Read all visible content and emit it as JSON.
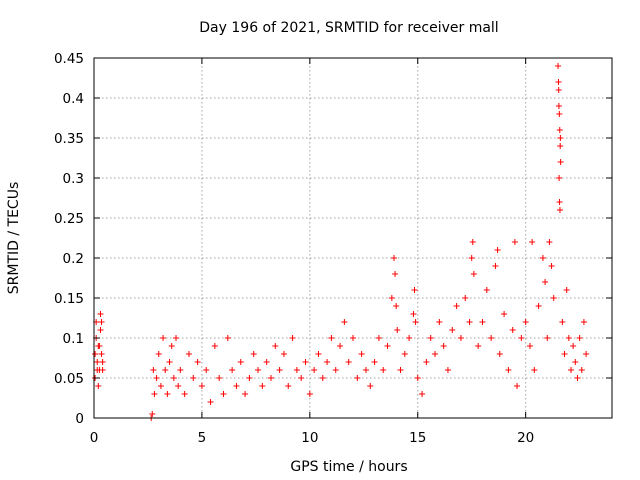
{
  "chart_data": {
    "type": "scatter",
    "title": "Day 196 of 2021, SRMTID for receiver mall",
    "xlabel": "GPS time / hours",
    "ylabel": "SRMTID / TECUs",
    "xlim": [
      0,
      24
    ],
    "ylim": [
      0,
      0.45
    ],
    "xticks": [
      0,
      5,
      10,
      15,
      20
    ],
    "xtick_labels": [
      "0",
      "5",
      "10",
      "15",
      "20"
    ],
    "yticks": [
      0,
      0.05,
      0.1,
      0.15,
      0.2,
      0.25,
      0.3,
      0.35,
      0.4,
      0.45
    ],
    "ytick_labels": [
      "0",
      "0.05",
      "0.1",
      "0.15",
      "0.2",
      "0.25",
      "0.3",
      "0.35",
      "0.4",
      "0.45"
    ],
    "grid": true,
    "marker": "plus",
    "marker_color": "#ff0000",
    "series": [
      {
        "name": "SRMTID",
        "x": [
          0.05,
          0.1,
          0.15,
          0.2,
          0.25,
          0.3,
          0.35,
          0.1,
          0.2,
          0.3,
          0.4,
          0.05,
          0.15,
          0.25,
          0.35,
          0.4,
          2.65,
          2.7,
          2.75,
          2.8,
          2.9,
          3.0,
          3.1,
          3.2,
          3.3,
          3.4,
          3.5,
          3.6,
          3.7,
          3.8,
          3.9,
          4.0,
          4.2,
          4.4,
          4.6,
          4.8,
          5.0,
          5.2,
          5.4,
          5.6,
          5.8,
          6.0,
          6.2,
          6.4,
          6.6,
          6.8,
          7.0,
          7.2,
          7.4,
          7.6,
          7.8,
          8.0,
          8.2,
          8.4,
          8.6,
          8.8,
          9.0,
          9.2,
          9.4,
          9.6,
          9.8,
          10.0,
          10.2,
          10.4,
          10.6,
          10.8,
          11.0,
          11.2,
          11.4,
          11.6,
          11.8,
          12.0,
          12.2,
          12.4,
          12.6,
          12.8,
          13.0,
          13.2,
          13.4,
          13.6,
          13.8,
          13.9,
          13.95,
          14.0,
          14.05,
          14.2,
          14.4,
          14.6,
          14.8,
          14.85,
          14.9,
          15.0,
          15.2,
          15.4,
          15.6,
          15.8,
          16.0,
          16.2,
          16.4,
          16.6,
          16.8,
          17.0,
          17.2,
          17.4,
          17.5,
          17.55,
          17.6,
          17.8,
          18.0,
          18.2,
          18.4,
          18.6,
          18.7,
          18.8,
          19.0,
          19.2,
          19.4,
          19.5,
          19.6,
          19.8,
          20.0,
          20.2,
          20.3,
          20.4,
          20.6,
          20.8,
          20.9,
          21.0,
          21.1,
          21.2,
          21.3,
          21.5,
          21.52,
          21.54,
          21.56,
          21.58,
          21.6,
          21.62,
          21.55,
          21.57,
          21.59,
          21.53,
          21.61,
          21.7,
          21.8,
          21.9,
          22.0,
          22.1,
          22.2,
          22.3,
          22.4,
          22.5,
          22.6,
          22.7,
          22.8
        ],
        "y": [
          0.05,
          0.12,
          0.07,
          0.09,
          0.06,
          0.13,
          0.08,
          0.1,
          0.04,
          0.11,
          0.07,
          0.08,
          0.06,
          0.09,
          0.12,
          0.06,
          0.0,
          0.005,
          0.06,
          0.03,
          0.05,
          0.08,
          0.04,
          0.1,
          0.06,
          0.03,
          0.07,
          0.09,
          0.05,
          0.1,
          0.04,
          0.06,
          0.03,
          0.08,
          0.05,
          0.07,
          0.04,
          0.06,
          0.02,
          0.09,
          0.05,
          0.03,
          0.1,
          0.06,
          0.04,
          0.07,
          0.03,
          0.05,
          0.08,
          0.06,
          0.04,
          0.07,
          0.05,
          0.09,
          0.06,
          0.08,
          0.04,
          0.1,
          0.06,
          0.05,
          0.07,
          0.03,
          0.06,
          0.08,
          0.05,
          0.07,
          0.1,
          0.06,
          0.09,
          0.12,
          0.07,
          0.1,
          0.05,
          0.08,
          0.06,
          0.04,
          0.07,
          0.1,
          0.06,
          0.09,
          0.15,
          0.2,
          0.18,
          0.14,
          0.11,
          0.06,
          0.08,
          0.1,
          0.13,
          0.16,
          0.12,
          0.05,
          0.03,
          0.07,
          0.1,
          0.08,
          0.12,
          0.09,
          0.06,
          0.11,
          0.14,
          0.1,
          0.15,
          0.12,
          0.2,
          0.22,
          0.18,
          0.09,
          0.12,
          0.16,
          0.1,
          0.19,
          0.21,
          0.08,
          0.13,
          0.06,
          0.11,
          0.22,
          0.04,
          0.1,
          0.12,
          0.09,
          0.22,
          0.06,
          0.14,
          0.2,
          0.17,
          0.1,
          0.22,
          0.19,
          0.15,
          0.44,
          0.42,
          0.39,
          0.38,
          0.36,
          0.34,
          0.32,
          0.3,
          0.27,
          0.26,
          0.41,
          0.35,
          0.12,
          0.08,
          0.16,
          0.1,
          0.06,
          0.09,
          0.07,
          0.05,
          0.1,
          0.06,
          0.12,
          0.08
        ]
      }
    ]
  }
}
